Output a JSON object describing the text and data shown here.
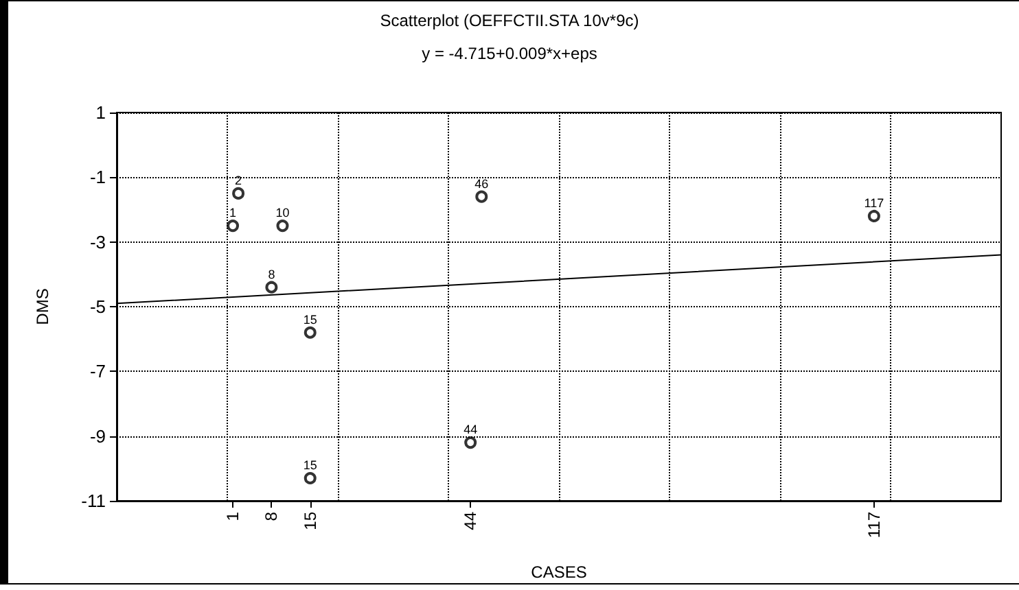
{
  "chart_data": {
    "type": "scatter",
    "title": "Scatterplot (OEFFCTII.STA 10v*9c)",
    "subtitle": "y = -4.715+0.009*x+eps",
    "xlabel": "CASES",
    "ylabel": "DMS",
    "series": [
      {
        "color": "#000000",
        "x": [
          1,
          2,
          10,
          8,
          15,
          15,
          44,
          46,
          117
        ],
        "values": [
          -2.5,
          -1.5,
          -2.5,
          -4.4,
          -5.8,
          -10.3,
          -9.2,
          -1.6,
          -2.2
        ]
      },
      {
        "type": "line",
        "color": "#000000",
        "x": [
          -20,
          140
        ],
        "values": [
          -4.9,
          -3.4
        ],
        "marker": "none"
      }
    ],
    "annotations": [
      {
        "text": "1",
        "x": 1,
        "y": -2.5
      },
      {
        "text": "2",
        "x": 2,
        "y": -1.5
      },
      {
        "text": "10",
        "x": 10,
        "y": -2.5
      },
      {
        "text": "8",
        "x": 8,
        "y": -4.4
      },
      {
        "text": "15",
        "x": 15,
        "y": -5.8
      },
      {
        "text": "15",
        "x": 15,
        "y": -10.3
      },
      {
        "text": "44",
        "x": 44,
        "y": -9.2
      },
      {
        "text": "46",
        "x": 46,
        "y": -1.6
      },
      {
        "text": "117",
        "x": 117,
        "y": -2.2
      }
    ],
    "xlim": [
      -20,
      140
    ],
    "xticks": [
      {
        "value": 0,
        "label": null
      },
      1,
      8,
      15,
      {
        "value": 20,
        "label": null
      },
      {
        "value": 40,
        "label": null
      },
      44,
      {
        "value": 60,
        "label": null
      },
      {
        "value": 80,
        "label": null
      },
      {
        "value": 100,
        "label": null
      },
      117,
      {
        "value": 120,
        "label": null
      }
    ],
    "ylim": [
      -11,
      1
    ],
    "yticks": [
      -11,
      -9,
      -7,
      -5,
      -3,
      -1,
      1
    ],
    "grid": true,
    "marker": "circle",
    "line_style": "solid"
  }
}
